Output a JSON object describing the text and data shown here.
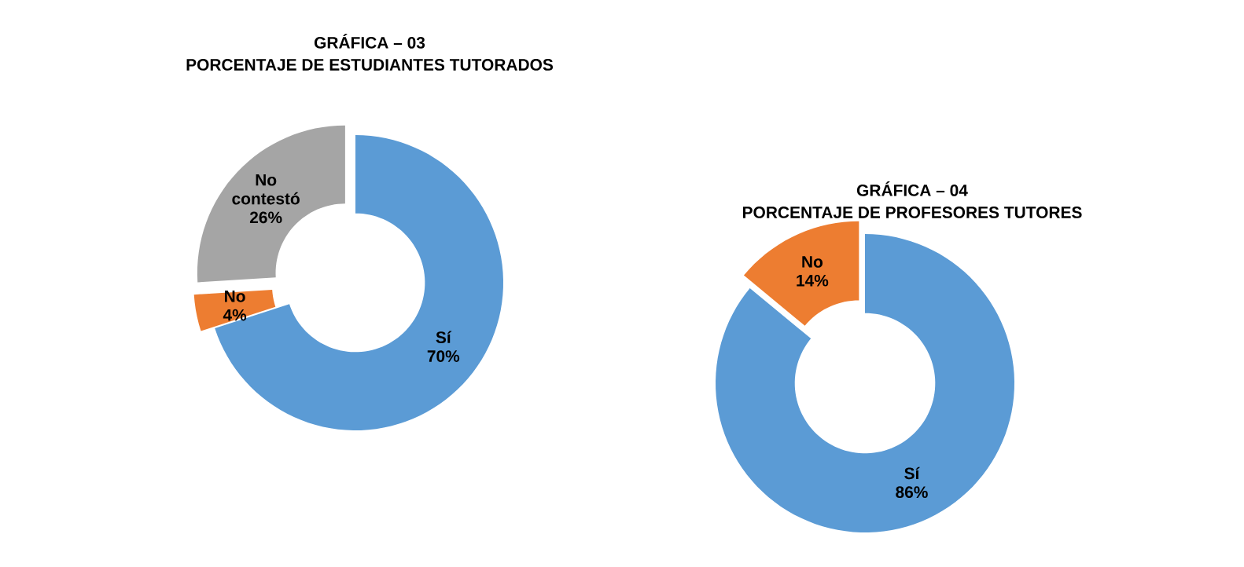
{
  "chart_data": [
    {
      "type": "donut",
      "title": "GRÁFICA – 03",
      "subtitle": "PORCENTAJE DE ESTUDIANTES TUTORADOS",
      "categories": [
        "Sí",
        "No",
        "No contestó"
      ],
      "values": [
        70,
        4,
        26
      ],
      "value_labels": [
        "70%",
        "4%",
        "26%"
      ],
      "colors": [
        "#5b9bd5",
        "#ed7d31",
        "#a5a5a5"
      ]
    },
    {
      "type": "donut",
      "title": "GRÁFICA – 04",
      "subtitle": "PORCENTAJE DE PROFESORES TUTORES",
      "categories": [
        "Sí",
        "No"
      ],
      "values": [
        86,
        14
      ],
      "value_labels": [
        "86%",
        "14%"
      ],
      "colors": [
        "#5b9bd5",
        "#ed7d31"
      ]
    }
  ]
}
